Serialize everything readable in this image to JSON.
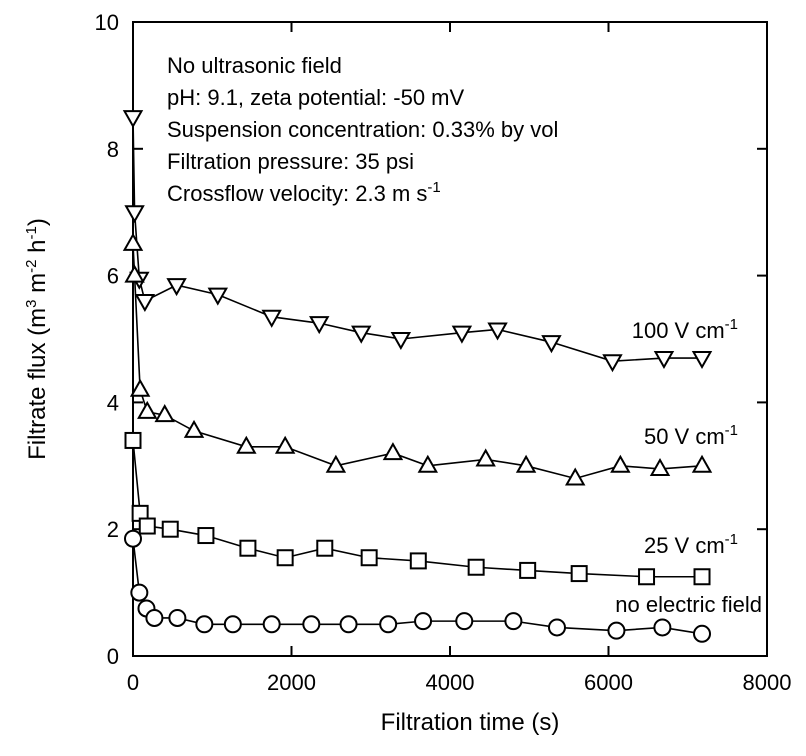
{
  "chart_data": {
    "type": "line",
    "title": "",
    "xlabel": "Filtration time (s)",
    "ylabel_parts": [
      "Filtrate flux (m",
      "3",
      " m",
      "-2",
      " h",
      "-1",
      ")"
    ],
    "xlim": [
      0,
      8000
    ],
    "ylim": [
      0,
      10
    ],
    "xticks": [
      0,
      2000,
      4000,
      6000,
      8000
    ],
    "yticks": [
      0,
      2,
      4,
      6,
      8,
      10
    ],
    "grid": false,
    "annotations": [
      {
        "parts": [
          "No ultrasonic field"
        ]
      },
      {
        "parts": [
          "pH: 9.1, zeta potential: -50 mV"
        ]
      },
      {
        "parts": [
          "Suspension concentration: 0.33% by vol"
        ]
      },
      {
        "parts": [
          "Filtration pressure: 35 psi"
        ]
      },
      {
        "parts": [
          "Crossflow velocity: 2.3 m s",
          "-1"
        ]
      }
    ],
    "series": [
      {
        "name_parts": [
          "100 V cm",
          "-1"
        ],
        "marker": "triangle-down",
        "x": [
          0,
          20,
          80,
          150,
          550,
          1070,
          1750,
          2350,
          2880,
          3380,
          4150,
          4600,
          5280,
          6050,
          6700,
          7180
        ],
        "y": [
          8.5,
          7.0,
          5.95,
          5.6,
          5.85,
          5.7,
          5.35,
          5.25,
          5.1,
          5.0,
          5.1,
          5.15,
          4.95,
          4.65,
          4.7,
          4.7
        ]
      },
      {
        "name_parts": [
          "50 V cm",
          "-1"
        ],
        "marker": "triangle-up",
        "x": [
          0,
          20,
          90,
          180,
          400,
          770,
          1430,
          1920,
          2560,
          3280,
          3720,
          4450,
          4960,
          5580,
          6150,
          6650,
          7180
        ],
        "y": [
          6.5,
          6.0,
          4.2,
          3.85,
          3.8,
          3.55,
          3.3,
          3.3,
          3.0,
          3.2,
          3.0,
          3.1,
          3.0,
          2.8,
          3.0,
          2.95,
          3.0
        ]
      },
      {
        "name_parts": [
          "25 V cm",
          "-1"
        ],
        "marker": "square",
        "x": [
          0,
          90,
          180,
          470,
          920,
          1450,
          1920,
          2420,
          2980,
          3600,
          4330,
          4980,
          5630,
          6480,
          7180
        ],
        "y": [
          3.4,
          2.25,
          2.05,
          2.0,
          1.9,
          1.7,
          1.55,
          1.7,
          1.55,
          1.5,
          1.4,
          1.35,
          1.3,
          1.25,
          1.25
        ]
      },
      {
        "name_parts": [
          "no electric field"
        ],
        "marker": "circle",
        "x": [
          0,
          80,
          170,
          270,
          560,
          900,
          1260,
          1750,
          2250,
          2720,
          3220,
          3660,
          4180,
          4800,
          5350,
          6100,
          6680,
          7180
        ],
        "y": [
          1.85,
          1.0,
          0.75,
          0.6,
          0.6,
          0.5,
          0.5,
          0.5,
          0.5,
          0.5,
          0.5,
          0.55,
          0.55,
          0.55,
          0.45,
          0.4,
          0.45,
          0.35
        ]
      }
    ]
  }
}
